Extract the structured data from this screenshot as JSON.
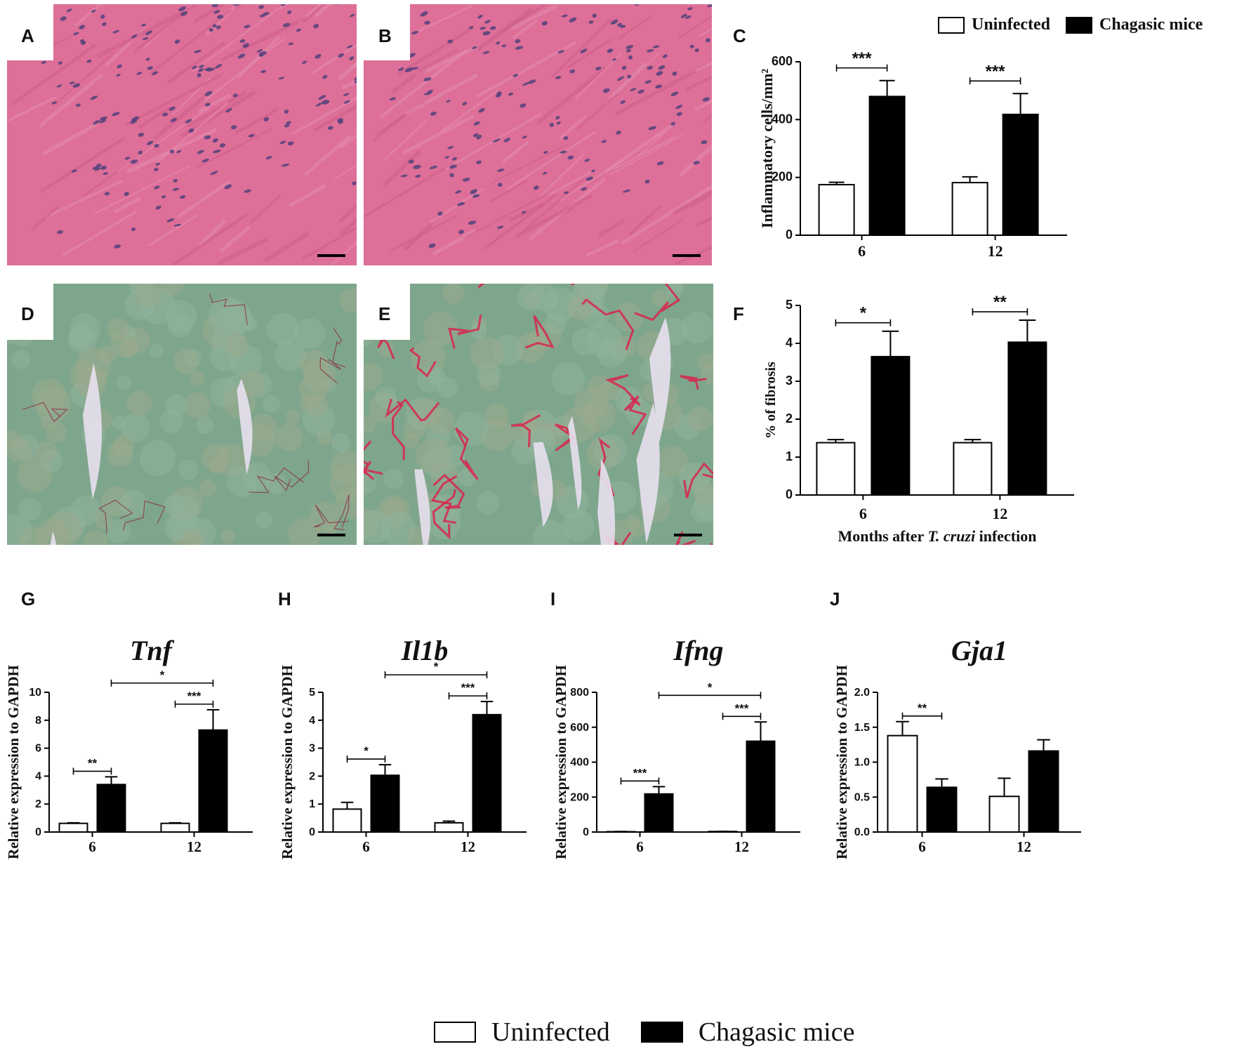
{
  "panel_labels": {
    "A": "A",
    "B": "B",
    "C": "C",
    "D": "D",
    "E": "E",
    "F": "F",
    "G": "G",
    "H": "H",
    "I": "I",
    "J": "J"
  },
  "legend": {
    "uninfected": "Uninfected",
    "chagasic": "Chagasic mice"
  },
  "colors": {
    "he_stain": "#dd6f98",
    "nuclei": "#4a3f7a",
    "sirius_green": "#7ea68c",
    "collagen_red": "#d8244c",
    "uninfected_fill": "#ffffff",
    "chagasic_fill": "#000000"
  },
  "chart_data": [
    {
      "id": "C",
      "type": "bar",
      "categories": [
        "6",
        "12"
      ],
      "series": [
        {
          "name": "Uninfected",
          "values": [
            175,
            182
          ],
          "errors": [
            8,
            20
          ]
        },
        {
          "name": "Chagasic mice",
          "values": [
            480,
            418
          ],
          "errors": [
            55,
            72
          ]
        }
      ],
      "title": "",
      "xlabel": "",
      "ylabel": "Inflammatory cells/mm²",
      "ylim": [
        0,
        600
      ],
      "yticks": [
        "0",
        "200",
        "400",
        "600"
      ],
      "significance": [
        {
          "category": 0,
          "label": "***"
        },
        {
          "category": 1,
          "label": "***"
        }
      ]
    },
    {
      "id": "F",
      "type": "bar",
      "categories": [
        "6",
        "12"
      ],
      "series": [
        {
          "name": "Uninfected",
          "values": [
            1.38,
            1.38
          ],
          "errors": [
            0.08,
            0.08
          ]
        },
        {
          "name": "Chagasic mice",
          "values": [
            3.65,
            4.03
          ],
          "errors": [
            0.67,
            0.58
          ]
        }
      ],
      "title": "",
      "xlabel_parts": [
        "Months after ",
        "T. cruzi",
        " infection"
      ],
      "ylabel": "% of fibrosis",
      "ylim": [
        0,
        5
      ],
      "yticks": [
        "0",
        "1",
        "2",
        "3",
        "4",
        "5"
      ],
      "significance": [
        {
          "category": 0,
          "label": "*"
        },
        {
          "category": 1,
          "label": "**"
        }
      ]
    },
    {
      "id": "G",
      "type": "bar",
      "categories": [
        "6",
        "12"
      ],
      "series": [
        {
          "name": "Uninfected",
          "values": [
            0.62,
            0.62
          ],
          "errors": [
            0.04,
            0.04
          ]
        },
        {
          "name": "Chagasic mice",
          "values": [
            3.4,
            7.3
          ],
          "errors": [
            0.55,
            1.45
          ]
        }
      ],
      "title": "Tnf",
      "ylabel": "Relative expression to GAPDH",
      "ylim": [
        0,
        10
      ],
      "yticks": [
        "0",
        "2",
        "4",
        "6",
        "8",
        "10"
      ],
      "significance": [
        {
          "category": 0,
          "label": "**"
        },
        {
          "category": 1,
          "label": "***"
        },
        {
          "across": true,
          "label": "*"
        }
      ]
    },
    {
      "id": "H",
      "type": "bar",
      "categories": [
        "6",
        "12"
      ],
      "series": [
        {
          "name": "Uninfected",
          "values": [
            0.82,
            0.33
          ],
          "errors": [
            0.24,
            0.06
          ]
        },
        {
          "name": "Chagasic mice",
          "values": [
            2.03,
            4.2
          ],
          "errors": [
            0.38,
            0.47
          ]
        }
      ],
      "title": "Il1b",
      "ylabel": "Relative expression to GAPDH",
      "ylim": [
        0,
        5
      ],
      "yticks": [
        "0",
        "1",
        "2",
        "3",
        "4",
        "5"
      ],
      "significance": [
        {
          "category": 0,
          "label": "*"
        },
        {
          "category": 1,
          "label": "***"
        },
        {
          "across": true,
          "label": "*"
        }
      ]
    },
    {
      "id": "I",
      "type": "bar",
      "categories": [
        "6",
        "12"
      ],
      "series": [
        {
          "name": "Uninfected",
          "values": [
            2,
            3
          ],
          "errors": [
            1,
            1
          ]
        },
        {
          "name": "Chagasic mice",
          "values": [
            218,
            520
          ],
          "errors": [
            42,
            110
          ]
        }
      ],
      "title": "Ifng",
      "ylabel": "Relative expression to GAPDH",
      "ylim": [
        0,
        800
      ],
      "yticks": [
        "0",
        "200",
        "400",
        "600",
        "800"
      ],
      "significance": [
        {
          "category": 0,
          "label": "***"
        },
        {
          "category": 1,
          "label": "***"
        },
        {
          "across": true,
          "label": "*"
        }
      ]
    },
    {
      "id": "J",
      "type": "bar",
      "categories": [
        "6",
        "12"
      ],
      "series": [
        {
          "name": "Uninfected",
          "values": [
            1.38,
            0.51
          ],
          "errors": [
            0.2,
            0.26
          ]
        },
        {
          "name": "Chagasic mice",
          "values": [
            0.64,
            1.16
          ],
          "errors": [
            0.12,
            0.16
          ]
        }
      ],
      "title": "Gja1",
      "ylabel": "Relative expression to GAPDH",
      "ylim": [
        0,
        2
      ],
      "yticks": [
        "0.0",
        "0.5",
        "1.0",
        "1.5",
        "2.0"
      ],
      "significance": [
        {
          "category": 0,
          "label": "**"
        }
      ]
    }
  ]
}
